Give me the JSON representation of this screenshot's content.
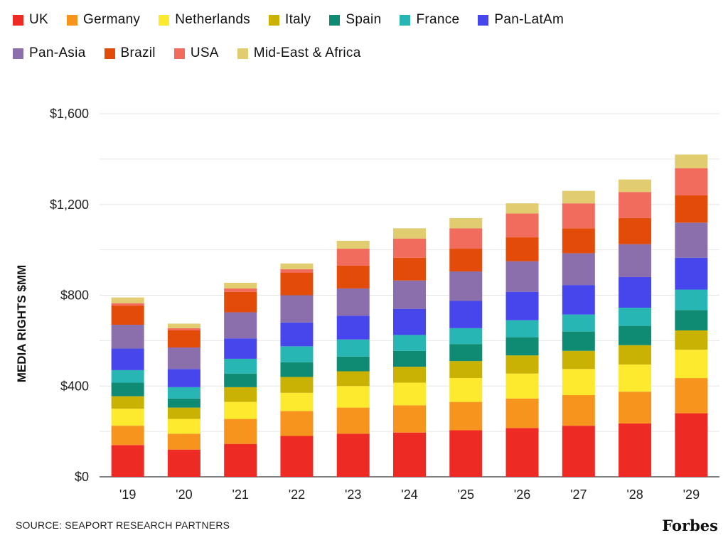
{
  "legend_rows": [
    [
      "UK",
      "Germany",
      "Netherlands",
      "Italy",
      "Spain",
      "France",
      "Pan-LatAm"
    ],
    [
      "Pan-Asia",
      "Brazil",
      "USA",
      "Mid-East & Africa"
    ]
  ],
  "source": "SOURCE: SEAPORT RESEARCH PARTNERS",
  "logo": "Forbes",
  "chart_data": {
    "type": "bar",
    "stacked": true,
    "ylabel": "MEDIA RIGHTS $MM",
    "ylim": [
      0,
      1600
    ],
    "yticks": [
      0,
      400,
      800,
      1200,
      1600
    ],
    "ytick_labels": [
      "$0",
      "$400",
      "$800",
      "$1,200",
      "$1,600"
    ],
    "grid": true,
    "legend_position": "top",
    "categories": [
      "'19",
      "'20",
      "'21",
      "'22",
      "'23",
      "'24",
      "'25",
      "'26",
      "'27",
      "'28",
      "'29"
    ],
    "series": [
      {
        "name": "UK",
        "color": "#ee2a24",
        "values": [
          140,
          120,
          145,
          180,
          190,
          195,
          205,
          215,
          225,
          235,
          280
        ]
      },
      {
        "name": "Germany",
        "color": "#f7941d",
        "values": [
          85,
          70,
          110,
          110,
          115,
          120,
          125,
          130,
          135,
          140,
          155
        ]
      },
      {
        "name": "Netherlands",
        "color": "#fde92d",
        "values": [
          75,
          65,
          75,
          80,
          95,
          100,
          105,
          110,
          115,
          120,
          125
        ]
      },
      {
        "name": "Italy",
        "color": "#c9b204",
        "values": [
          55,
          50,
          65,
          70,
          65,
          70,
          75,
          80,
          80,
          85,
          85
        ]
      },
      {
        "name": "Spain",
        "color": "#0f8a73",
        "values": [
          60,
          40,
          60,
          65,
          65,
          70,
          75,
          80,
          85,
          85,
          90
        ]
      },
      {
        "name": "France",
        "color": "#28b6b4",
        "values": [
          55,
          50,
          65,
          70,
          75,
          70,
          70,
          75,
          75,
          80,
          90
        ]
      },
      {
        "name": "Pan-LatAm",
        "color": "#4646ec",
        "values": [
          95,
          80,
          90,
          105,
          105,
          115,
          120,
          125,
          130,
          135,
          140
        ]
      },
      {
        "name": "Pan-Asia",
        "color": "#8a6fac",
        "values": [
          105,
          95,
          115,
          120,
          120,
          125,
          130,
          135,
          140,
          145,
          155
        ]
      },
      {
        "name": "Brazil",
        "color": "#e34b08",
        "values": [
          85,
          75,
          90,
          100,
          100,
          100,
          100,
          105,
          110,
          115,
          120
        ]
      },
      {
        "name": "USA",
        "color": "#f26c5e",
        "values": [
          10,
          10,
          15,
          15,
          75,
          85,
          90,
          105,
          110,
          115,
          120
        ]
      },
      {
        "name": "Mid-East & Africa",
        "color": "#e1cc70",
        "values": [
          25,
          20,
          25,
          25,
          35,
          45,
          45,
          45,
          55,
          55,
          60
        ]
      }
    ]
  }
}
